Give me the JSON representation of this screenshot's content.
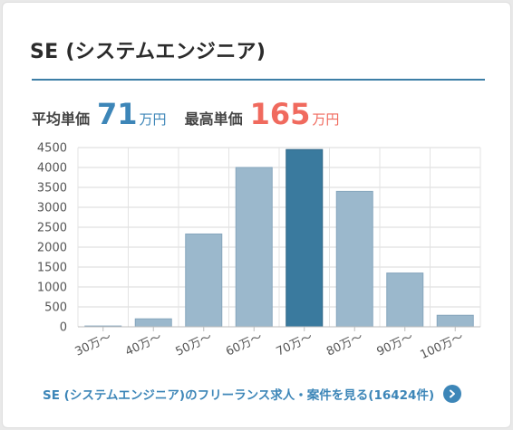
{
  "card": {
    "title": "SE (システムエンジニア)",
    "average": {
      "label": "平均単価",
      "value": "71",
      "unit": "万円"
    },
    "maximum": {
      "label": "最高単価",
      "value": "165",
      "unit": "万円"
    },
    "link_text": "SE (システムエンジニア)のフリーランス求人・案件を見る(16424件)",
    "arrow_icon": "chevron-right-icon"
  },
  "colors": {
    "accent": "#3d86b8",
    "highlight_bar": "#3a7a9e",
    "bar": "#9bb8cc",
    "max_price": "#f06a5e"
  },
  "chart_data": {
    "type": "bar",
    "categories": [
      "30万～",
      "40万～",
      "50万～",
      "60万～",
      "70万～",
      "80万～",
      "90万～",
      "100万～"
    ],
    "values": [
      20,
      200,
      2330,
      4000,
      4450,
      3400,
      1350,
      290
    ],
    "highlight_index": 4,
    "ylim": [
      0,
      4500
    ],
    "yticks": [
      0,
      500,
      1000,
      1500,
      2000,
      2500,
      3000,
      3500,
      4000,
      4500
    ],
    "grid": true
  }
}
